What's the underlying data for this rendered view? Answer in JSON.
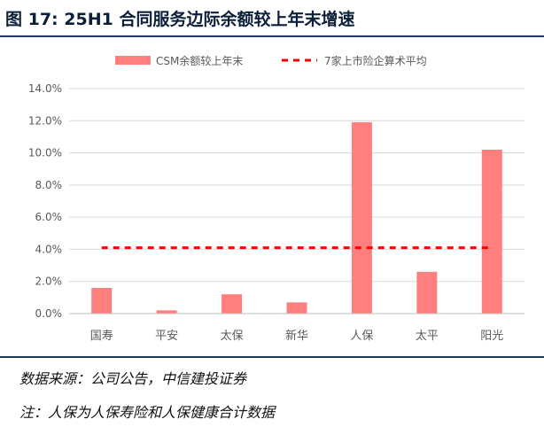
{
  "header": {
    "title": "图 17: 25H1 合同服务边际余额较上年末增速"
  },
  "notes": {
    "source": "数据来源：公司公告，中信建投证券",
    "footnote": "注：人保为人保寿险和人保健康合计数据"
  },
  "chart_data": {
    "type": "bar",
    "categories": [
      "国寿",
      "平安",
      "太保",
      "新华",
      "人保",
      "太平",
      "阳光"
    ],
    "series": [
      {
        "name": "CSM余额较上年末",
        "type": "bar",
        "color": "#ff7f7f",
        "values": [
          1.6,
          0.2,
          1.2,
          0.7,
          11.9,
          2.6,
          10.2
        ]
      },
      {
        "name": "7家上市险企算术平均",
        "type": "line",
        "style": "dashed",
        "color": "#ff0000",
        "values": [
          4.1,
          4.1,
          4.1,
          4.1,
          4.1,
          4.1,
          4.1
        ]
      }
    ],
    "yticks": [
      "0.0%",
      "2.0%",
      "4.0%",
      "6.0%",
      "8.0%",
      "10.0%",
      "12.0%",
      "14.0%"
    ],
    "ylim": [
      0,
      14
    ],
    "y_unit": "%",
    "grid": true,
    "legend_position": "top"
  }
}
